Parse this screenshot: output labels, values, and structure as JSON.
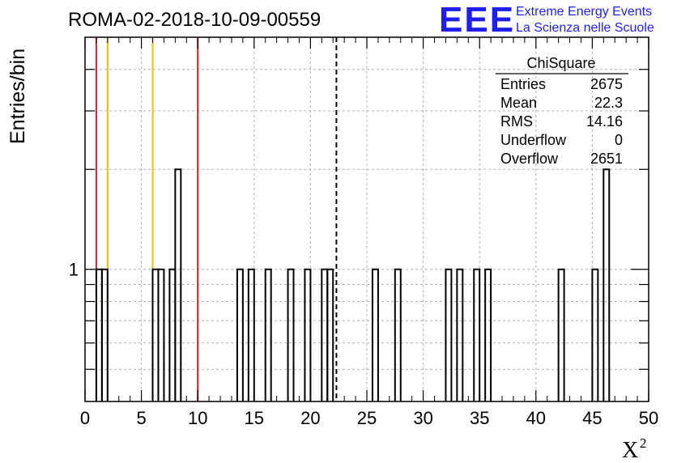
{
  "header": {
    "title": "ROMA-02-2018-10-09-00559",
    "logo_text": "EEE",
    "brand_line1": "Extreme Energy Events",
    "brand_line2": "La Scienza nelle Scuole"
  },
  "stats": {
    "name": "ChiSquare",
    "rows": [
      {
        "label": "Entries",
        "value": "2675"
      },
      {
        "label": "Mean",
        "value": "22.3"
      },
      {
        "label": "RMS",
        "value": "14.16"
      },
      {
        "label": "Underflow",
        "value": "0"
      },
      {
        "label": "Overflow",
        "value": "2651"
      }
    ]
  },
  "colors": {
    "red_line": "#d42020",
    "yellow_line": "#f0c000",
    "brand": "#1f1ff0",
    "grid": "#b0b0b0"
  },
  "chart_data": {
    "type": "histogram",
    "xlabel": "X",
    "xlabel_superscript": "2",
    "ylabel": "Entries/bin",
    "xlim": [
      0,
      50
    ],
    "ylim": [
      0.4,
      5
    ],
    "yscale": "log",
    "x_ticks": [
      "0",
      "5",
      "10",
      "15",
      "20",
      "25",
      "30",
      "35",
      "40",
      "45",
      "50"
    ],
    "y_ticks": [
      "1"
    ],
    "grid": true,
    "bin_width": 0.5,
    "bins": [
      {
        "x": 1.0,
        "count": 1
      },
      {
        "x": 1.5,
        "count": 1
      },
      {
        "x": 6.0,
        "count": 1
      },
      {
        "x": 6.5,
        "count": 1
      },
      {
        "x": 7.5,
        "count": 1
      },
      {
        "x": 8.0,
        "count": 2
      },
      {
        "x": 13.5,
        "count": 1
      },
      {
        "x": 14.5,
        "count": 1
      },
      {
        "x": 16.0,
        "count": 1
      },
      {
        "x": 18.0,
        "count": 1
      },
      {
        "x": 19.5,
        "count": 1
      },
      {
        "x": 21.0,
        "count": 1
      },
      {
        "x": 21.5,
        "count": 1
      },
      {
        "x": 25.5,
        "count": 1
      },
      {
        "x": 27.5,
        "count": 1
      },
      {
        "x": 32.0,
        "count": 1
      },
      {
        "x": 33.0,
        "count": 1
      },
      {
        "x": 34.5,
        "count": 1
      },
      {
        "x": 35.5,
        "count": 1
      },
      {
        "x": 42.0,
        "count": 1
      },
      {
        "x": 45.0,
        "count": 1
      },
      {
        "x": 46.0,
        "count": 2
      }
    ],
    "vlines": [
      {
        "x": 1.0,
        "color": "red"
      },
      {
        "x": 10.0,
        "color": "red"
      },
      {
        "x": 2.0,
        "color": "yellow"
      },
      {
        "x": 6.0,
        "color": "yellow"
      },
      {
        "x": 22.3,
        "color": "black",
        "style": "dashed"
      }
    ]
  }
}
